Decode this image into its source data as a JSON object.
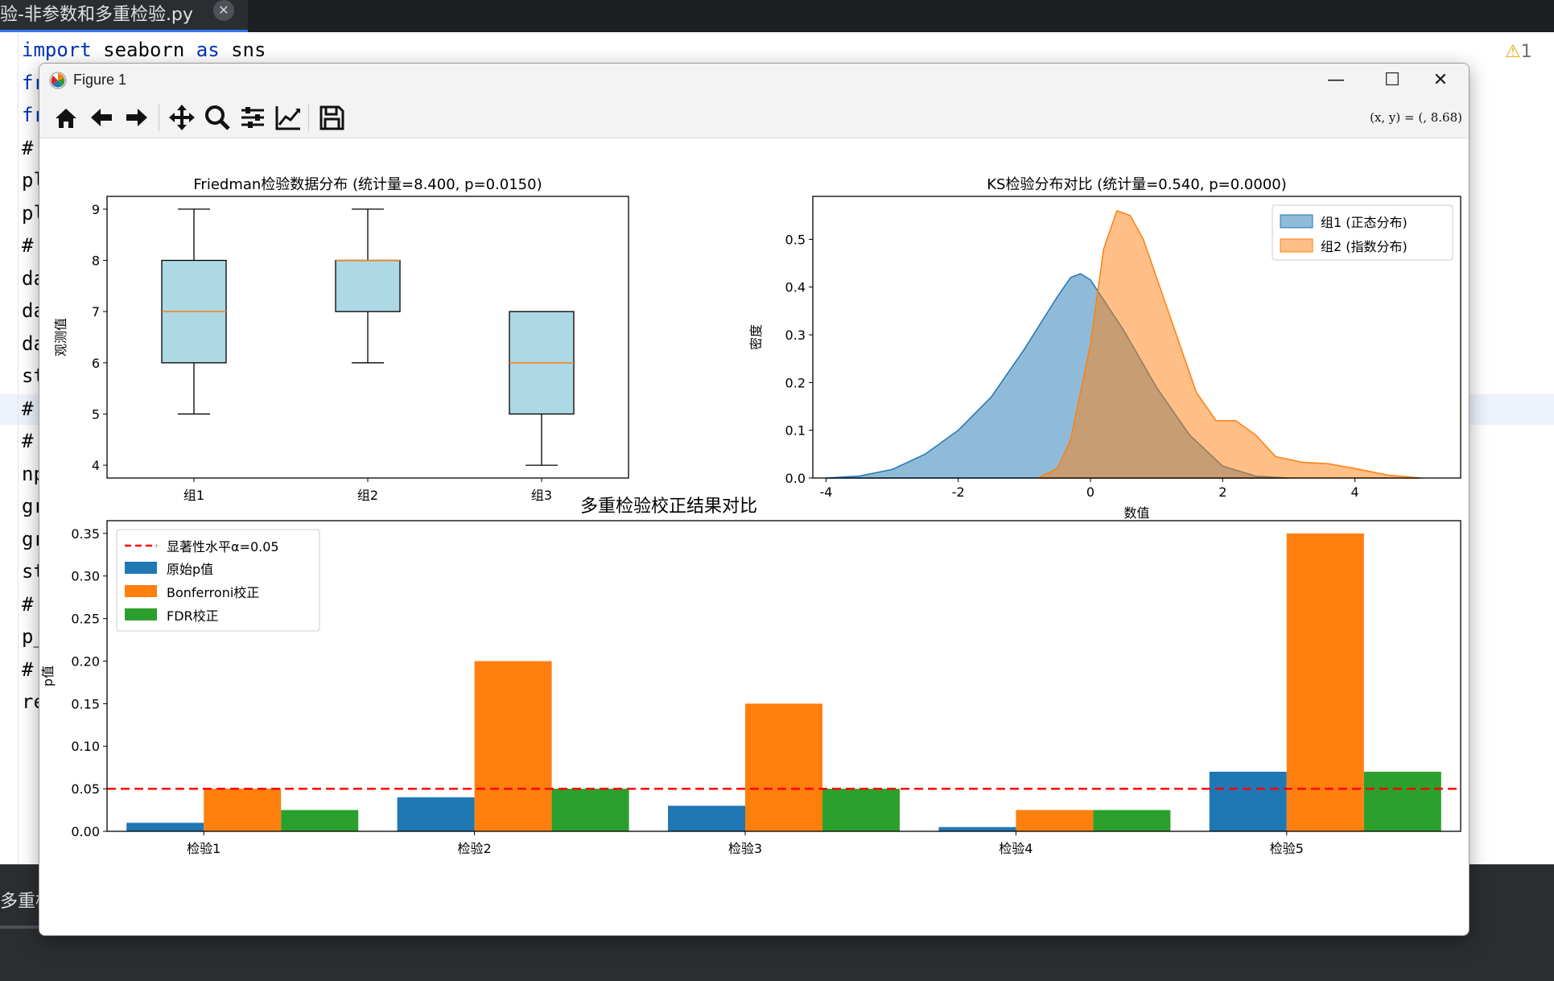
{
  "ide": {
    "tab_label": "验-非参数和多重检验.py",
    "close_glyph": "✕",
    "warning_count": "1",
    "bottom_label": "多重检",
    "code_lines": [
      {
        "kw": "import",
        "rest": " seaborn ",
        "kw2": "as",
        "rest2": " sns"
      },
      {
        "kw": "fr",
        "rest": ""
      },
      {
        "kw": "fr",
        "rest": ""
      },
      {
        "kw": "",
        "rest": "#"
      },
      {
        "kw": "",
        "rest": "pl"
      },
      {
        "kw": "",
        "rest": "pl"
      },
      {
        "kw": "",
        "rest": "#"
      },
      {
        "kw": "",
        "rest": "da"
      },
      {
        "kw": "",
        "rest": "da"
      },
      {
        "kw": "",
        "rest": "da"
      },
      {
        "kw": "",
        "rest": "st"
      },
      {
        "kw": "",
        "rest": "#"
      },
      {
        "kw": "",
        "rest": "#"
      },
      {
        "kw": "",
        "rest": "np"
      },
      {
        "kw": "",
        "rest": "gr"
      },
      {
        "kw": "",
        "rest": "gr"
      },
      {
        "kw": "",
        "rest": "st"
      },
      {
        "kw": "",
        "rest": "#"
      },
      {
        "kw": "",
        "rest": "p_"
      },
      {
        "kw": "",
        "rest": "#"
      },
      {
        "kw": "",
        "rest": "re"
      }
    ]
  },
  "window": {
    "title": "Figure 1",
    "minimize": "—",
    "maximize": "☐",
    "close": "✕",
    "coords_readout": "(x, y) = (, 8.68)"
  },
  "toolbar": {
    "icons": [
      "home-icon",
      "back-arrow-icon",
      "forward-arrow-icon",
      "pan-icon",
      "zoom-icon",
      "configure-subplots-icon",
      "edit-axis-icon",
      "save-icon"
    ]
  },
  "colors": {
    "box_fill": "#add8e6",
    "median": "#ff7f0e",
    "blue": "#1f77b4",
    "orange": "#ff7f0e",
    "green": "#2ca02c",
    "red": "#ff0000"
  },
  "chart_data": [
    {
      "type": "box",
      "title": "Friedman检验数据分布 (统计量=8.400, p=0.0150)",
      "xlabel": "",
      "ylabel": "观测值",
      "categories": [
        "组1",
        "组2",
        "组3"
      ],
      "boxes": [
        {
          "whislo": 5,
          "q1": 6,
          "med": 7,
          "q3": 8,
          "whishi": 9
        },
        {
          "whislo": 6,
          "q1": 7,
          "med": 8,
          "q3": 8,
          "whishi": 9
        },
        {
          "whislo": 4,
          "q1": 5,
          "med": 6,
          "q3": 7,
          "whishi": 7
        }
      ],
      "ylim": [
        3.75,
        9.25
      ],
      "yticks": [
        4,
        5,
        6,
        7,
        8,
        9
      ]
    },
    {
      "type": "area",
      "title": "KS检验分布对比 (统计量=0.540, p=0.0000)",
      "xlabel": "数值",
      "ylabel": "密度",
      "xlim": [
        -4.2,
        5.6
      ],
      "ylim": [
        0,
        0.59
      ],
      "xticks": [
        -4,
        -2,
        0,
        2,
        4
      ],
      "yticks": [
        0.0,
        0.1,
        0.2,
        0.3,
        0.4,
        0.5
      ],
      "legend_position": "top-right",
      "series": [
        {
          "name": "组1 (正态分布)",
          "x": [
            -4.0,
            -3.5,
            -3.0,
            -2.5,
            -2.0,
            -1.5,
            -1.0,
            -0.5,
            -0.3,
            -0.15,
            0.0,
            0.5,
            1.0,
            1.5,
            2.0,
            2.5,
            3.0
          ],
          "y": [
            0.0,
            0.004,
            0.018,
            0.05,
            0.1,
            0.17,
            0.27,
            0.38,
            0.42,
            0.428,
            0.415,
            0.31,
            0.19,
            0.09,
            0.025,
            0.004,
            0.0
          ]
        },
        {
          "name": "组2 (指数分布)",
          "x": [
            -0.8,
            -0.5,
            -0.3,
            0.0,
            0.2,
            0.4,
            0.6,
            0.8,
            1.0,
            1.3,
            1.6,
            1.9,
            2.2,
            2.5,
            2.8,
            3.2,
            3.6,
            4.0,
            4.5,
            5.0
          ],
          "y": [
            0.0,
            0.02,
            0.08,
            0.28,
            0.48,
            0.56,
            0.55,
            0.5,
            0.42,
            0.3,
            0.18,
            0.12,
            0.12,
            0.09,
            0.045,
            0.033,
            0.03,
            0.02,
            0.006,
            0.0
          ]
        }
      ]
    },
    {
      "type": "bar",
      "title": "多重检验校正结果对比",
      "xlabel": "",
      "ylabel": "p值",
      "categories": [
        "检验1",
        "检验2",
        "检验3",
        "检验4",
        "检验5"
      ],
      "ylim": [
        0,
        0.365
      ],
      "yticks": [
        "0.00",
        "0.05",
        "0.10",
        "0.15",
        "0.20",
        "0.25",
        "0.30",
        "0.35"
      ],
      "threshold": 0.05,
      "legend_position": "top-left",
      "legend": {
        "threshold_label": "显著性水平α=0.05"
      },
      "series": [
        {
          "name": "原始p值",
          "values": [
            0.01,
            0.04,
            0.03,
            0.005,
            0.07
          ]
        },
        {
          "name": "Bonferroni校正",
          "values": [
            0.05,
            0.2,
            0.15,
            0.025,
            0.35
          ]
        },
        {
          "name": "FDR校正",
          "values": [
            0.025,
            0.05,
            0.05,
            0.025,
            0.07
          ]
        }
      ]
    }
  ]
}
